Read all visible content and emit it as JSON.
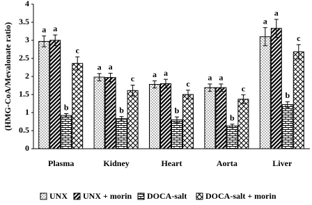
{
  "chart_data": {
    "type": "bar",
    "ylabel": "(HMG-CoA/Mevalonate ratio)",
    "categories": [
      "Plasma",
      "Kidney",
      "Heart",
      "Aorta",
      "Liver"
    ],
    "series": [
      {
        "name": "UNX",
        "pattern": "dots",
        "color": "#000000",
        "values": [
          2.97,
          1.98,
          1.78,
          1.69,
          3.1
        ],
        "errors": [
          0.15,
          0.1,
          0.1,
          0.1,
          0.25
        ],
        "letters": [
          "a",
          "a",
          "a",
          "a",
          "a"
        ]
      },
      {
        "name": "UNX + morin",
        "pattern": "diagonal",
        "color": "#000000",
        "values": [
          3.0,
          1.97,
          1.8,
          1.69,
          3.33
        ],
        "errors": [
          0.15,
          0.12,
          0.12,
          0.1,
          0.25
        ],
        "letters": [
          "a",
          "a",
          "a",
          "a",
          "a"
        ]
      },
      {
        "name": "DOCA-salt",
        "pattern": "brick",
        "color": "#000000",
        "values": [
          0.92,
          0.83,
          0.8,
          0.63,
          1.22
        ],
        "errors": [
          0.05,
          0.06,
          0.08,
          0.05,
          0.08
        ],
        "letters": [
          "b",
          "b",
          "b",
          "b",
          "b"
        ]
      },
      {
        "name": "DOCA-salt + morin",
        "pattern": "cross",
        "color": "#000000",
        "values": [
          2.36,
          1.61,
          1.5,
          1.37,
          2.68
        ],
        "errors": [
          0.18,
          0.15,
          0.12,
          0.12,
          0.2
        ],
        "letters": [
          "c",
          "c",
          "c",
          "c",
          "c"
        ]
      }
    ],
    "ylim": [
      0,
      4
    ],
    "yticks": [
      0,
      0.5,
      1,
      1.5,
      2,
      2.5,
      3,
      3.5,
      4
    ],
    "grid": false,
    "legend": "bottom"
  }
}
